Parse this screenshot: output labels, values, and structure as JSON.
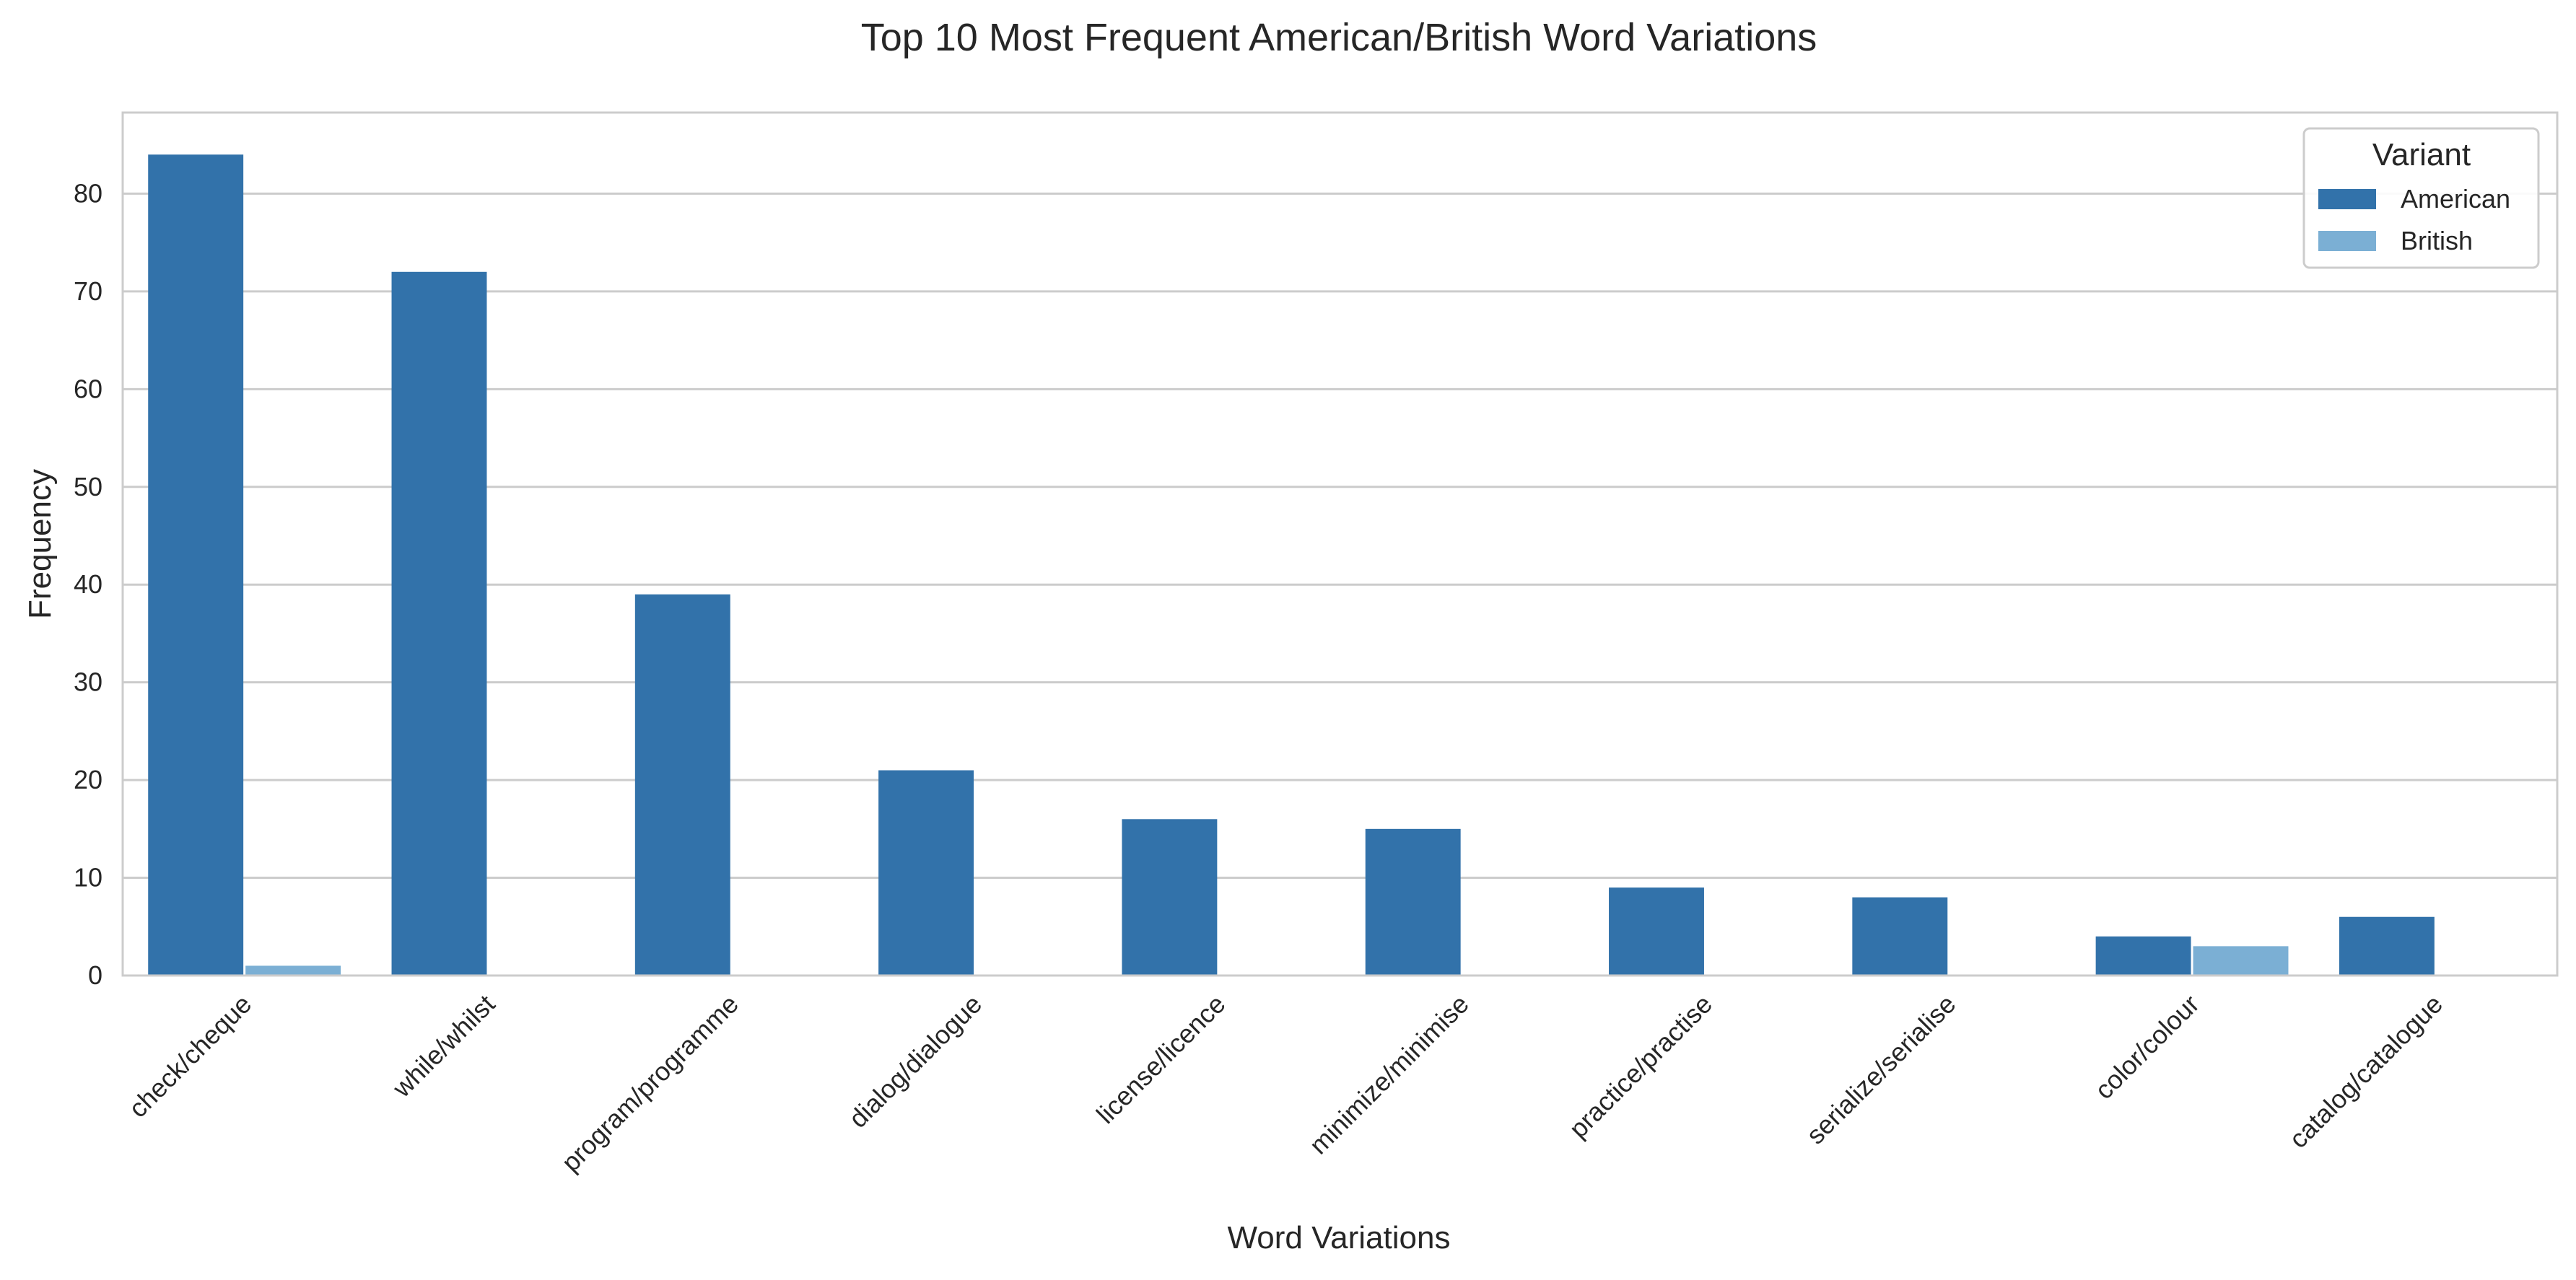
{
  "chart_data": {
    "type": "bar",
    "title": "Top 10 Most Frequent American/British Word Variations",
    "xlabel": "Word Variations",
    "ylabel": "Frequency",
    "categories": [
      "check/cheque",
      "while/whilst",
      "program/programme",
      "dialog/dialogue",
      "license/licence",
      "minimize/minimise",
      "practice/practise",
      "serialize/serialise",
      "color/colour",
      "catalog/catalogue"
    ],
    "series": [
      {
        "name": "American",
        "color": "#3272aa",
        "values": [
          84,
          72,
          39,
          21,
          16,
          15,
          9,
          8,
          4,
          6
        ]
      },
      {
        "name": "British",
        "color": "#7bafd4",
        "values": [
          1,
          0,
          0,
          0,
          0,
          0,
          0,
          0,
          3,
          0
        ]
      }
    ],
    "ylim": [
      0,
      88.3
    ],
    "yticks": [
      0,
      10,
      20,
      30,
      40,
      50,
      60,
      70,
      80
    ],
    "grid": "horizontal",
    "legend": {
      "title": "Variant",
      "position": "top-right"
    }
  }
}
